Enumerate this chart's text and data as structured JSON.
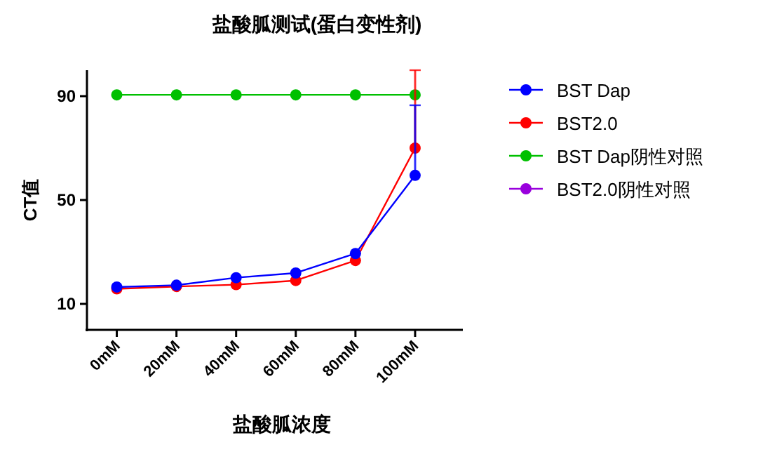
{
  "chart_data": {
    "type": "line",
    "title": "盐酸胍测试(蛋白变性剂)",
    "xlabel": "盐酸胍浓度",
    "ylabel": "CT值",
    "categories": [
      "0mM",
      "20mM",
      "40mM",
      "60mM",
      "80mM",
      "100mM"
    ],
    "ylim": [
      0,
      100
    ],
    "yticks": [
      10,
      50,
      90
    ],
    "marker": "circle",
    "legend": "right",
    "grid": false,
    "series": [
      {
        "name": "BST Dap",
        "color": "#0000ff",
        "values": [
          16.5,
          17.2,
          20.1,
          21.9,
          29.4,
          59.5
        ],
        "errors": [
          null,
          null,
          null,
          null,
          null,
          [
            59.5,
            86.5
          ]
        ]
      },
      {
        "name": "BST2.0",
        "color": "#ff0000",
        "values": [
          15.8,
          16.7,
          17.4,
          19,
          26.7,
          70
        ],
        "errors": [
          null,
          null,
          null,
          null,
          null,
          [
            70,
            100
          ]
        ]
      },
      {
        "name": "BST Dap阴性对照",
        "color": "#00c000",
        "values": [
          90.5,
          90.5,
          90.5,
          90.5,
          90.5,
          90.5
        ]
      },
      {
        "name": "BST2.0阴性对照",
        "color": "#9900dd",
        "values": [
          null,
          null,
          null,
          null,
          null,
          null
        ]
      }
    ]
  }
}
